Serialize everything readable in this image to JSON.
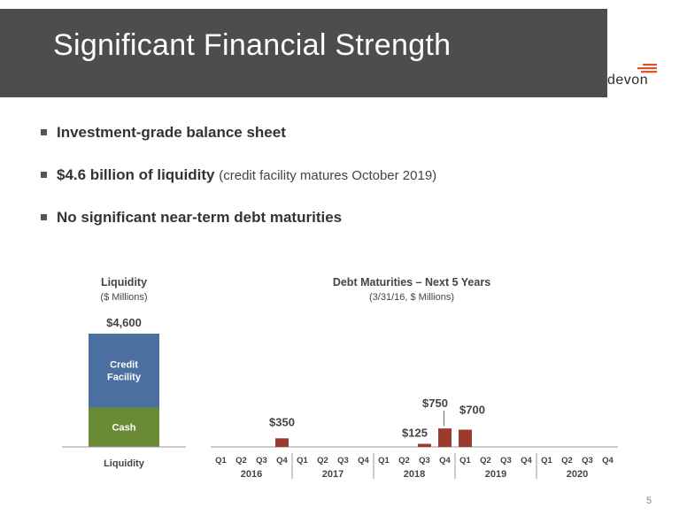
{
  "slide": {
    "title": "Significant Financial Strength",
    "logo_text": "devon",
    "page_number": "5"
  },
  "bullets": [
    {
      "bold": "Investment-grade balance sheet",
      "note": ""
    },
    {
      "bold": "$4.6 billion of liquidity",
      "note": "(credit facility matures October 2019)"
    },
    {
      "bold": "No significant near-term debt maturities",
      "note": ""
    }
  ],
  "colors": {
    "title_bar": "#4d4d4d",
    "credit_facility": "#4a6fa0",
    "cash": "#6b8a35",
    "debt_bar": "#9a3b2b",
    "logo_accent": "#e2532c"
  },
  "chart_data": [
    {
      "type": "bar",
      "title": "Liquidity",
      "subtitle": "($ Millions)",
      "categories": [
        "Liquidity"
      ],
      "total_label": "$4,600",
      "series": [
        {
          "name": "Cash",
          "values": [
            1600
          ]
        },
        {
          "name": "Credit Facility",
          "values": [
            3000
          ]
        }
      ],
      "ylim": [
        0,
        4600
      ],
      "stacked": true
    },
    {
      "type": "bar",
      "title": "Debt Maturities – Next 5 Years",
      "subtitle": "(3/31/16, $ Millions)",
      "years": [
        "2016",
        "2017",
        "2018",
        "2019",
        "2020"
      ],
      "quarters": [
        "Q1",
        "Q2",
        "Q3",
        "Q4"
      ],
      "values": [
        0,
        0,
        0,
        350,
        0,
        0,
        0,
        0,
        0,
        0,
        125,
        750,
        700,
        0,
        0,
        0,
        0,
        0,
        0,
        0
      ],
      "labels": {
        "3": "$350",
        "10": "$125",
        "11": "$750",
        "12": "$700"
      },
      "ylim": [
        0,
        4600
      ]
    }
  ]
}
